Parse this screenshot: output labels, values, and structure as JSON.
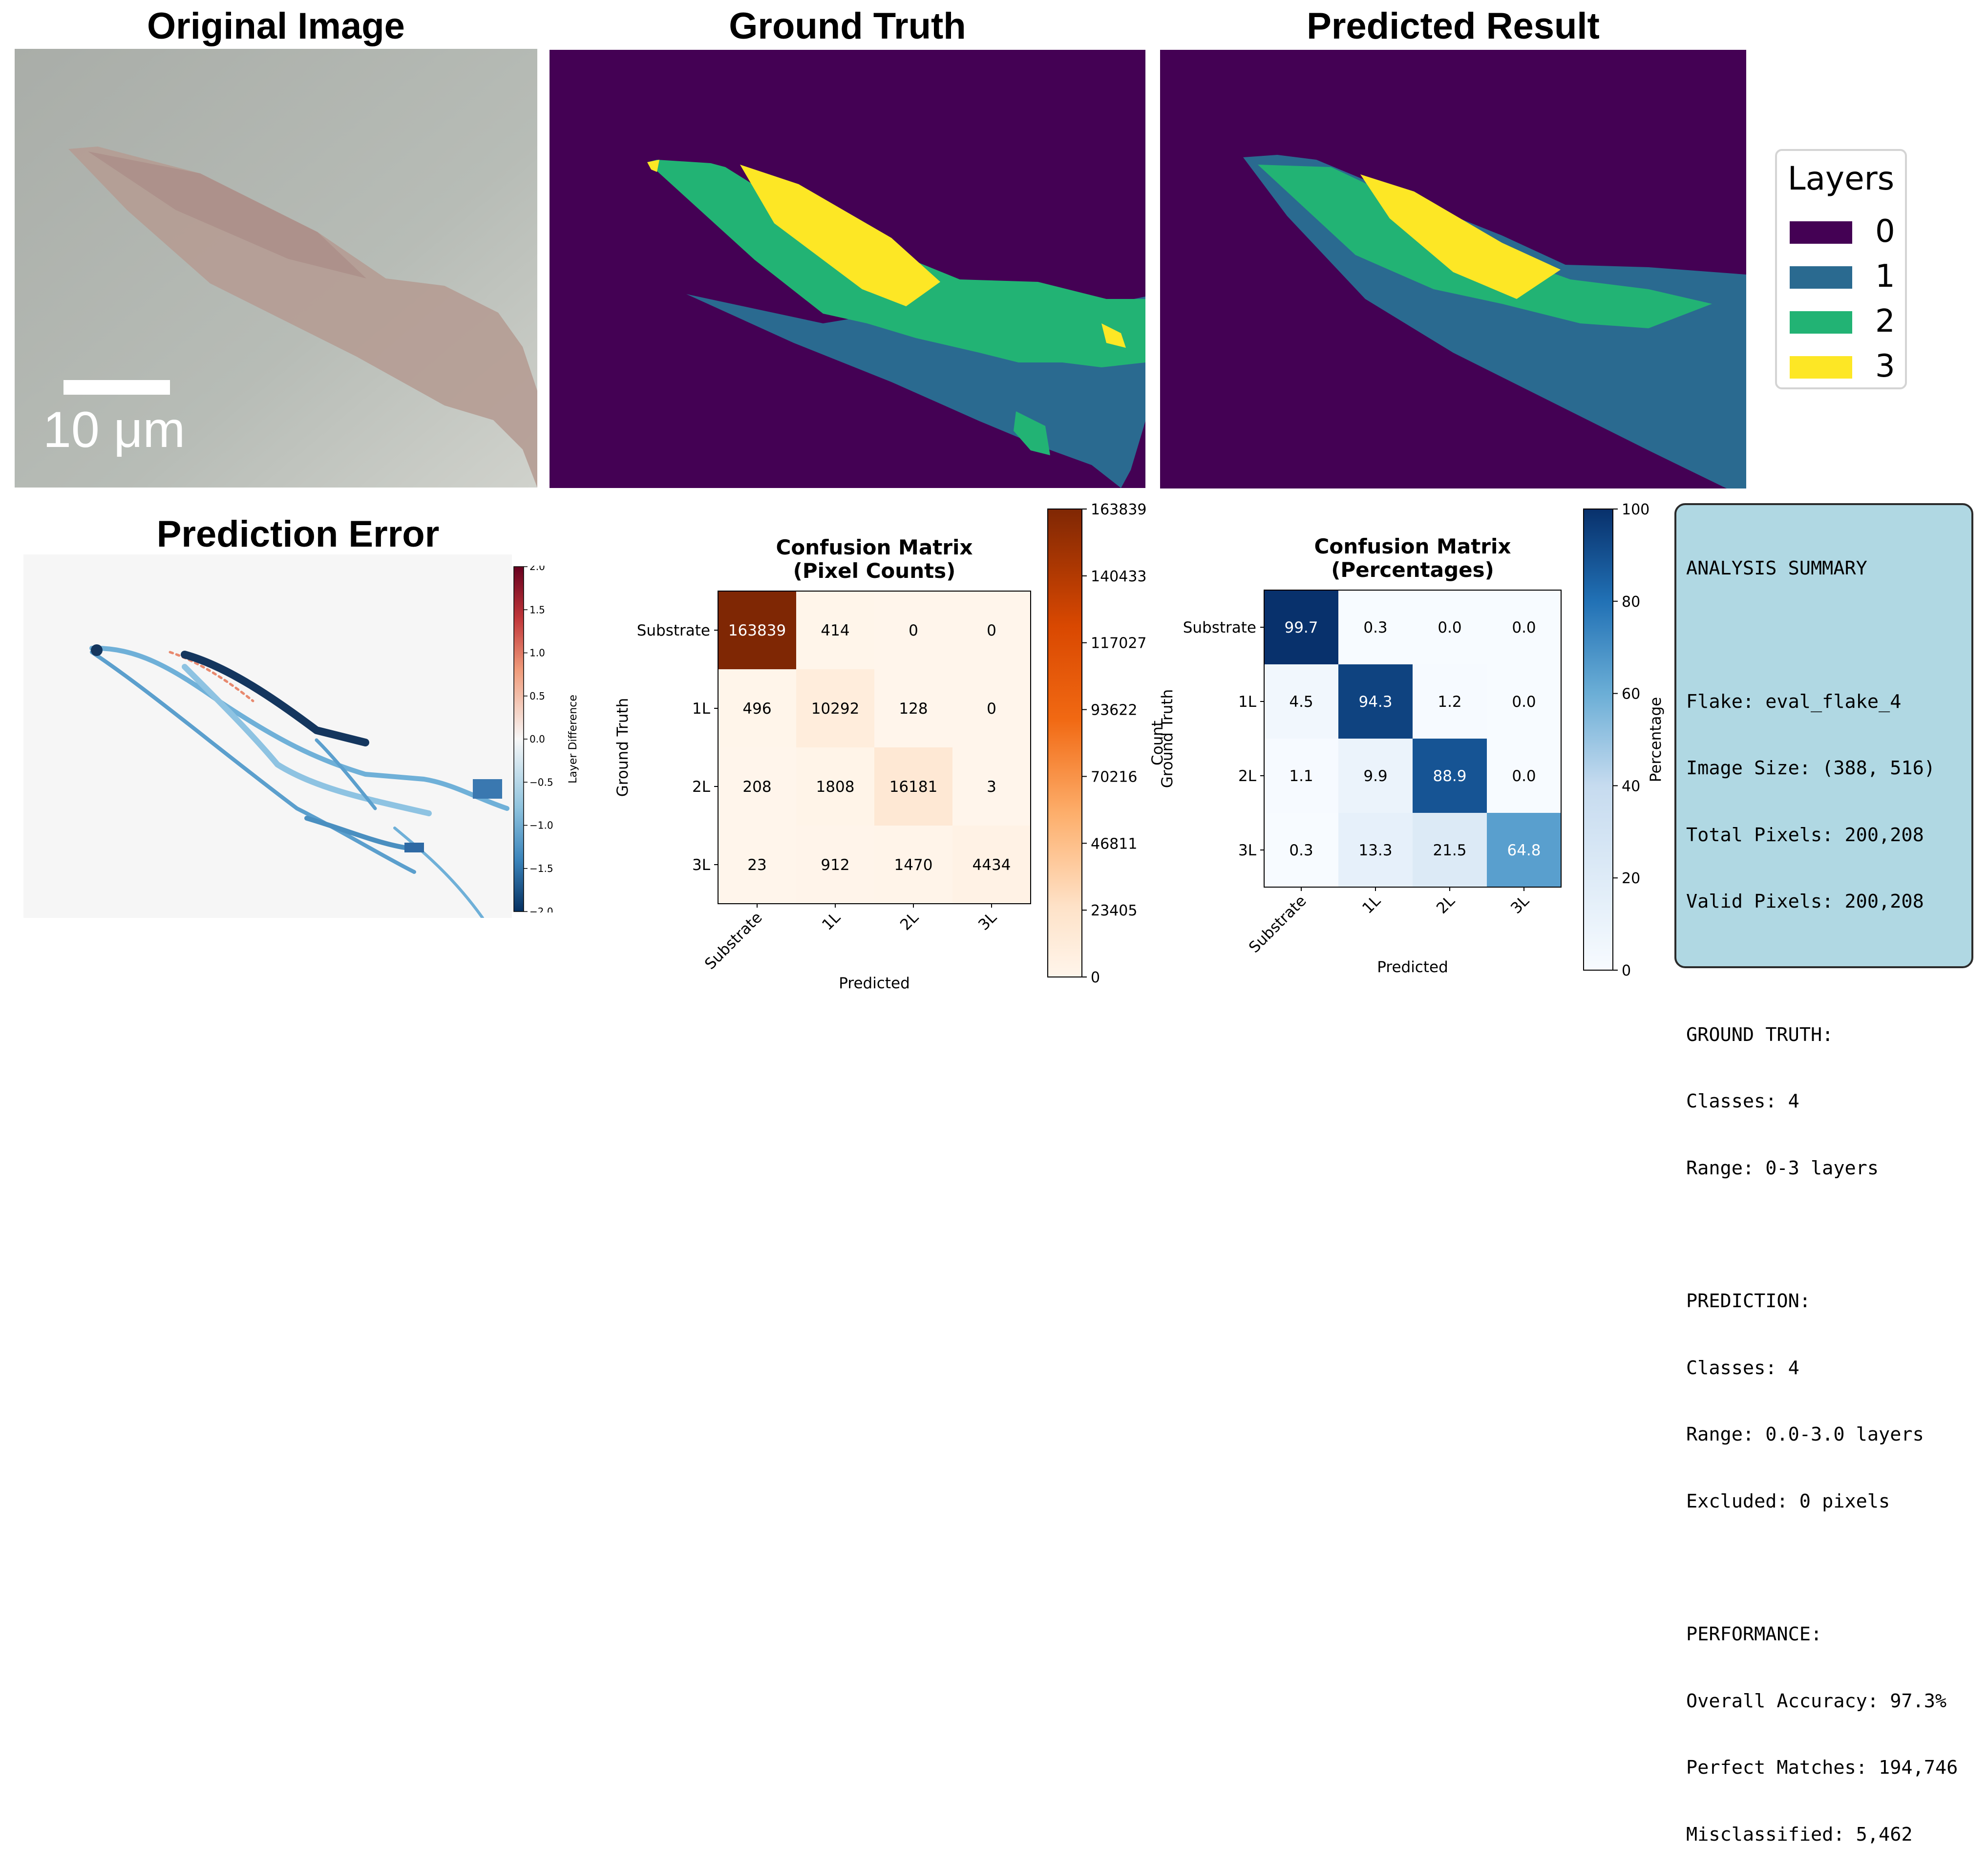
{
  "titles": {
    "original": "Original Image",
    "ground_truth": "Ground Truth",
    "predicted": "Predicted Result",
    "error": "Prediction Error"
  },
  "scale_bar": {
    "label": "10 μm"
  },
  "legend": {
    "title": "Layers",
    "items": [
      {
        "label": "0",
        "color": "#440154"
      },
      {
        "label": "1",
        "color": "#2a6a90"
      },
      {
        "label": "2",
        "color": "#22b374"
      },
      {
        "label": "3",
        "color": "#fde725"
      }
    ]
  },
  "colors": {
    "layer0": "#440154",
    "layer1": "#2a6a90",
    "layer2": "#22b374",
    "layer3": "#fde725",
    "microscope_bg": "#b3b8b3",
    "flake": "#b89a90"
  },
  "error_colorbar": {
    "label": "Layer Difference",
    "ticks": [
      "2.0",
      "1.5",
      "1.0",
      "0.5",
      "0.0",
      "−0.5",
      "−1.0",
      "−1.5",
      "−2.0"
    ]
  },
  "chart_data": [
    {
      "type": "heatmap",
      "title": "Confusion Matrix\n(Pixel Counts)",
      "title_lines": [
        "Confusion Matrix",
        "(Pixel Counts)"
      ],
      "xlabel": "Predicted",
      "ylabel": "Ground Truth",
      "x_categories": [
        "Substrate",
        "1L",
        "2L",
        "3L"
      ],
      "y_categories": [
        "Substrate",
        "1L",
        "2L",
        "3L"
      ],
      "values": [
        [
          163839,
          414,
          0,
          0
        ],
        [
          496,
          10292,
          128,
          0
        ],
        [
          208,
          1808,
          16181,
          3
        ],
        [
          23,
          912,
          1470,
          4434
        ]
      ],
      "colorbar": {
        "label": "Count",
        "range": [
          0,
          163839
        ],
        "ticks": [
          "163839",
          "140433",
          "117027",
          "93622",
          "70216",
          "46811",
          "23405",
          "0"
        ]
      }
    },
    {
      "type": "heatmap",
      "title": "Confusion Matrix\n(Percentages)",
      "title_lines": [
        "Confusion Matrix",
        "(Percentages)"
      ],
      "xlabel": "Predicted",
      "ylabel": "Ground Truth",
      "x_categories": [
        "Substrate",
        "1L",
        "2L",
        "3L"
      ],
      "y_categories": [
        "Substrate",
        "1L",
        "2L",
        "3L"
      ],
      "values": [
        [
          99.7,
          0.3,
          0.0,
          0.0
        ],
        [
          4.5,
          94.3,
          1.2,
          0.0
        ],
        [
          1.1,
          9.9,
          88.9,
          0.0
        ],
        [
          0.3,
          13.3,
          21.5,
          64.8
        ]
      ],
      "colorbar": {
        "label": "Percentage",
        "range": [
          0,
          100
        ],
        "ticks": [
          "100",
          "80",
          "60",
          "40",
          "20",
          "0"
        ]
      }
    }
  ],
  "summary": {
    "heading": "ANALYSIS SUMMARY",
    "flake": "Flake: eval_flake_4",
    "image_size": "Image Size: (388, 516)",
    "total_pixels": "Total Pixels: 200,208",
    "valid_pixels": "Valid Pixels: 200,208",
    "gt_heading": "GROUND TRUTH:",
    "gt_classes": "Classes: 4",
    "gt_range": "Range: 0-3 layers",
    "pred_heading": "PREDICTION:",
    "pred_classes": "Classes: 4",
    "pred_range": "Range: 0.0-3.0 layers",
    "pred_excluded": "Excluded: 0 pixels",
    "perf_heading": "PERFORMANCE:",
    "accuracy": "Overall Accuracy: 97.3%",
    "perfect": "Perfect Matches: 194,746",
    "misclassified": "Misclassified: 5,462"
  }
}
